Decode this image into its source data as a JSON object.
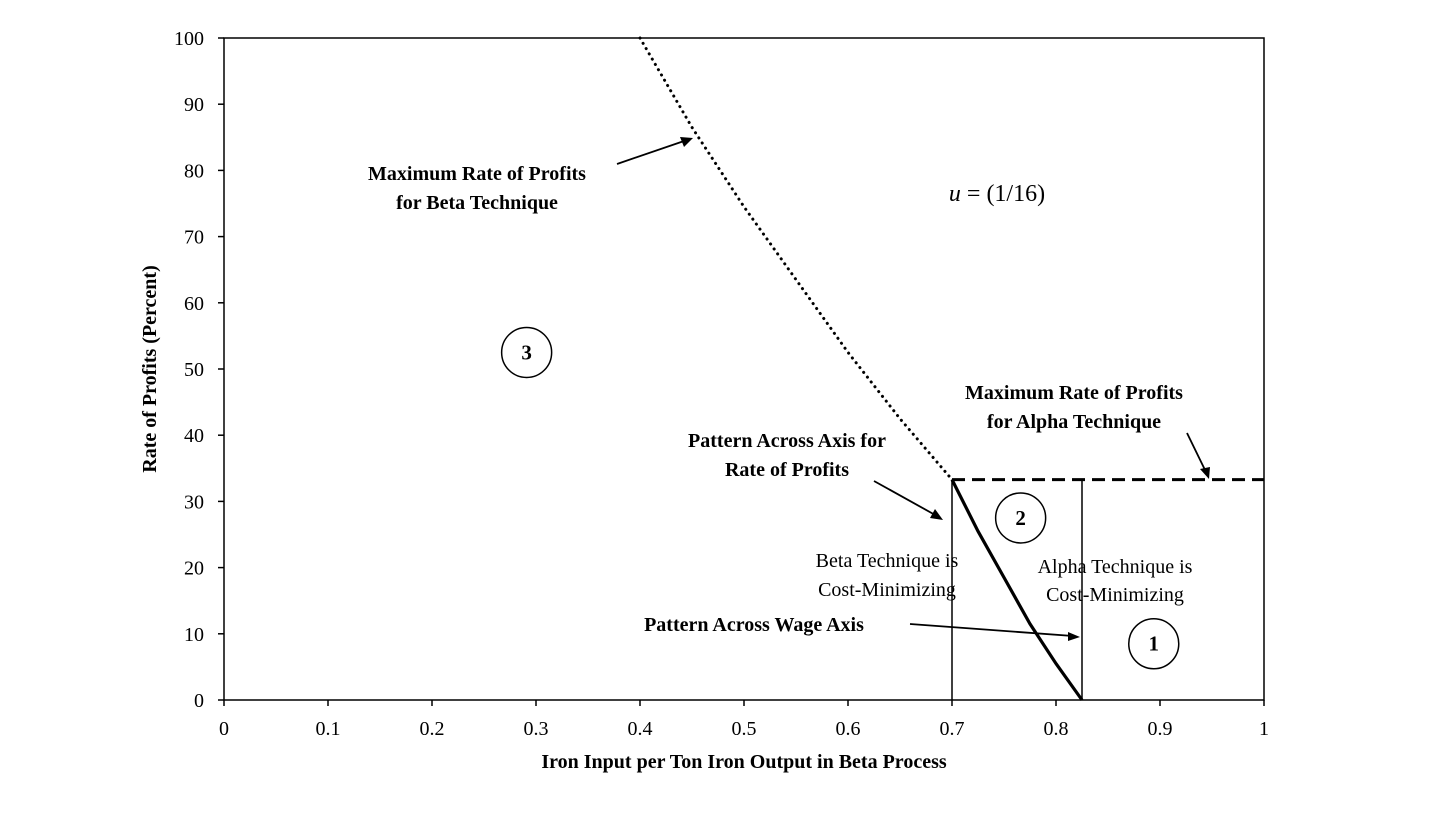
{
  "chart_data": {
    "type": "line",
    "title": "",
    "xlabel": "Iron Input per Ton Iron Output in Beta Process",
    "ylabel": "Rate of Profits (Percent)",
    "xlim": [
      0,
      1
    ],
    "ylim": [
      0,
      100
    ],
    "x_ticks": [
      "0",
      "0.1",
      "0.2",
      "0.3",
      "0.4",
      "0.5",
      "0.6",
      "0.7",
      "0.8",
      "0.9",
      "1"
    ],
    "y_ticks": [
      "0",
      "10",
      "20",
      "30",
      "40",
      "50",
      "60",
      "70",
      "80",
      "90",
      "100"
    ],
    "grid": false,
    "series": [
      {
        "style": "dotted",
        "x": [
          0.4,
          0.45,
          0.5,
          0.55,
          0.6,
          0.65,
          0.7
        ],
        "y": [
          100,
          86.5,
          74.5,
          63.5,
          52.5,
          42.5,
          33.3
        ]
      },
      {
        "style": "dashed",
        "x": [
          0.7,
          1.0
        ],
        "y": [
          33.3,
          33.3
        ]
      },
      {
        "style": "solid-thick",
        "x": [
          0.7,
          0.725,
          0.75,
          0.775,
          0.8,
          0.825
        ],
        "y": [
          33.3,
          25.5,
          18.5,
          11.5,
          5.5,
          0
        ]
      }
    ],
    "vertical_lines": [
      {
        "x": 0.7,
        "y_top": 33.3
      },
      {
        "x": 0.825,
        "y_top": 33.3
      }
    ],
    "annotations": {
      "u_label_italic": "u",
      "u_label_rest": " = (1/16)",
      "max_beta": [
        "Maximum Rate of Profits",
        "for Beta Technique"
      ],
      "max_alpha": [
        "Maximum Rate of Profits",
        "for Alpha Technique"
      ],
      "pattern_profits": [
        "Pattern Across Axis for",
        "Rate of Profits"
      ],
      "pattern_wage": "Pattern Across Wage Axis",
      "beta_cost_min": [
        "Beta Technique is",
        "Cost-Minimizing"
      ],
      "alpha_cost_min": [
        "Alpha Technique is",
        "Cost-Minimizing"
      ]
    },
    "regions": [
      {
        "label": "1",
        "x": 0.894,
        "y": 8.5
      },
      {
        "label": "2",
        "x": 0.766,
        "y": 27.5
      },
      {
        "label": "3",
        "x": 0.291,
        "y": 52.5
      }
    ]
  }
}
